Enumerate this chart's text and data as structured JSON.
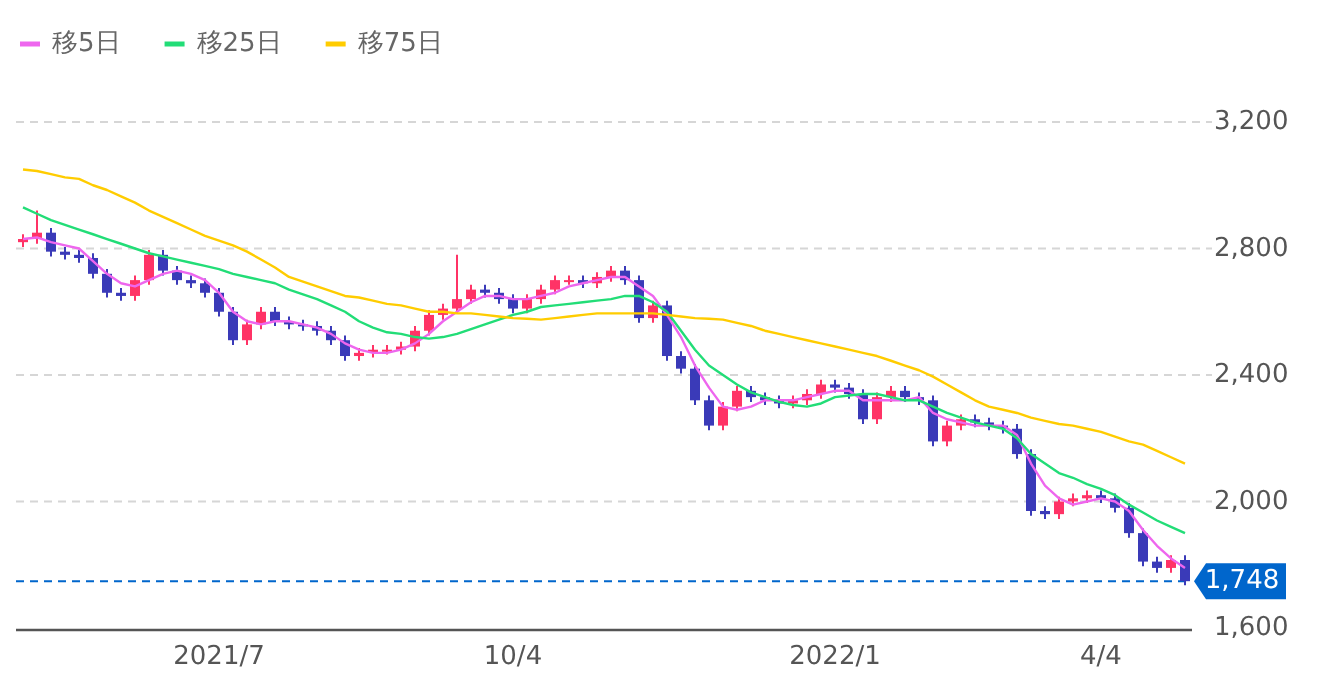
{
  "chart_data": {
    "type": "candlestick",
    "categories": [
      null,
      null,
      null,
      null,
      null,
      null,
      null,
      null,
      null,
      null,
      null,
      null,
      null,
      null,
      "2021/7",
      null,
      null,
      null,
      null,
      null,
      null,
      null,
      null,
      null,
      null,
      null,
      null,
      null,
      null,
      null,
      null,
      null,
      null,
      null,
      null,
      "10/4",
      null,
      null,
      null,
      null,
      null,
      null,
      null,
      null,
      null,
      null,
      null,
      null,
      null,
      null,
      null,
      null,
      null,
      null,
      null,
      null,
      null,
      null,
      "2022/1",
      null,
      null,
      null,
      null,
      null,
      null,
      null,
      null,
      null,
      null,
      null,
      null,
      null,
      null,
      null,
      null,
      null,
      null,
      "4/4",
      null,
      null,
      null,
      null,
      null,
      null
    ],
    "ohlc": [
      [
        2820,
        2845,
        2805,
        2830
      ],
      [
        2830,
        2920,
        2815,
        2850
      ],
      [
        2850,
        2865,
        2775,
        2790
      ],
      [
        2790,
        2805,
        2765,
        2780
      ],
      [
        2780,
        2795,
        2755,
        2770
      ],
      [
        2770,
        2785,
        2705,
        2720
      ],
      [
        2720,
        2735,
        2645,
        2660
      ],
      [
        2660,
        2675,
        2635,
        2650
      ],
      [
        2650,
        2715,
        2635,
        2700
      ],
      [
        2700,
        2795,
        2685,
        2780
      ],
      [
        2780,
        2795,
        2715,
        2730
      ],
      [
        2730,
        2745,
        2685,
        2700
      ],
      [
        2700,
        2715,
        2675,
        2690
      ],
      [
        2690,
        2705,
        2645,
        2660
      ],
      [
        2660,
        2675,
        2585,
        2600
      ],
      [
        2600,
        2615,
        2495,
        2510
      ],
      [
        2510,
        2575,
        2495,
        2560
      ],
      [
        2560,
        2615,
        2545,
        2600
      ],
      [
        2600,
        2615,
        2555,
        2570
      ],
      [
        2570,
        2585,
        2545,
        2560
      ],
      [
        2560,
        2575,
        2540,
        2555
      ],
      [
        2555,
        2570,
        2525,
        2540
      ],
      [
        2540,
        2555,
        2495,
        2510
      ],
      [
        2510,
        2525,
        2445,
        2460
      ],
      [
        2460,
        2485,
        2445,
        2470
      ],
      [
        2470,
        2495,
        2455,
        2480
      ],
      [
        2480,
        2495,
        2465,
        2480
      ],
      [
        2480,
        2505,
        2465,
        2490
      ],
      [
        2490,
        2555,
        2475,
        2540
      ],
      [
        2540,
        2605,
        2525,
        2590
      ],
      [
        2590,
        2625,
        2575,
        2610
      ],
      [
        2610,
        2780,
        2595,
        2640
      ],
      [
        2640,
        2685,
        2625,
        2670
      ],
      [
        2670,
        2685,
        2645,
        2660
      ],
      [
        2660,
        2675,
        2625,
        2640
      ],
      [
        2640,
        2655,
        2595,
        2610
      ],
      [
        2610,
        2655,
        2595,
        2640
      ],
      [
        2640,
        2685,
        2625,
        2670
      ],
      [
        2670,
        2715,
        2655,
        2700
      ],
      [
        2700,
        2715,
        2685,
        2700
      ],
      [
        2700,
        2715,
        2675,
        2690
      ],
      [
        2690,
        2725,
        2675,
        2710
      ],
      [
        2710,
        2745,
        2695,
        2730
      ],
      [
        2730,
        2745,
        2685,
        2700
      ],
      [
        2700,
        2715,
        2565,
        2580
      ],
      [
        2580,
        2635,
        2565,
        2620
      ],
      [
        2620,
        2635,
        2445,
        2460
      ],
      [
        2460,
        2475,
        2405,
        2420
      ],
      [
        2420,
        2435,
        2305,
        2320
      ],
      [
        2320,
        2335,
        2225,
        2240
      ],
      [
        2240,
        2315,
        2225,
        2300
      ],
      [
        2300,
        2365,
        2285,
        2350
      ],
      [
        2350,
        2365,
        2315,
        2330
      ],
      [
        2330,
        2345,
        2305,
        2320
      ],
      [
        2320,
        2335,
        2295,
        2310
      ],
      [
        2310,
        2335,
        2295,
        2320
      ],
      [
        2320,
        2355,
        2305,
        2340
      ],
      [
        2340,
        2385,
        2325,
        2370
      ],
      [
        2370,
        2385,
        2345,
        2360
      ],
      [
        2360,
        2375,
        2325,
        2340
      ],
      [
        2340,
        2355,
        2245,
        2260
      ],
      [
        2260,
        2345,
        2245,
        2330
      ],
      [
        2330,
        2365,
        2315,
        2350
      ],
      [
        2350,
        2365,
        2315,
        2330
      ],
      [
        2330,
        2345,
        2305,
        2320
      ],
      [
        2320,
        2335,
        2175,
        2190
      ],
      [
        2190,
        2255,
        2175,
        2240
      ],
      [
        2240,
        2275,
        2225,
        2260
      ],
      [
        2260,
        2275,
        2235,
        2250
      ],
      [
        2250,
        2265,
        2225,
        2240
      ],
      [
        2240,
        2255,
        2215,
        2230
      ],
      [
        2230,
        2245,
        2135,
        2150
      ],
      [
        2150,
        2165,
        1955,
        1970
      ],
      [
        1970,
        1985,
        1945,
        1960
      ],
      [
        1960,
        2015,
        1945,
        2000
      ],
      [
        2000,
        2025,
        1985,
        2010
      ],
      [
        2010,
        2035,
        1995,
        2020
      ],
      [
        2020,
        2035,
        1995,
        2010
      ],
      [
        2010,
        2025,
        1965,
        1980
      ],
      [
        1980,
        1995,
        1885,
        1900
      ],
      [
        1900,
        1915,
        1795,
        1810
      ],
      [
        1810,
        1825,
        1775,
        1790
      ],
      [
        1790,
        1830,
        1775,
        1815
      ],
      [
        1815,
        1830,
        1735,
        1748
      ]
    ],
    "colors": [
      "#ff3366",
      "#ff3366",
      "#3a3ab8",
      "#3a3ab8",
      "#3a3ab8",
      "#3a3ab8",
      "#3a3ab8",
      "#3a3ab8",
      "#ff3366",
      "#ff3366",
      "#3a3ab8",
      "#3a3ab8",
      "#3a3ab8",
      "#3a3ab8",
      "#3a3ab8",
      "#3a3ab8",
      "#ff3366",
      "#ff3366",
      "#3a3ab8",
      "#3a3ab8",
      "#3a3ab8",
      "#3a3ab8",
      "#3a3ab8",
      "#3a3ab8",
      "#ff3366",
      "#ff3366",
      "#ff3366",
      "#ff3366",
      "#ff3366",
      "#ff3366",
      "#ff3366",
      "#ff3366",
      "#ff3366",
      "#3a3ab8",
      "#3a3ab8",
      "#3a3ab8",
      "#ff3366",
      "#ff3366",
      "#ff3366",
      "#ff3366",
      "#3a3ab8",
      "#ff3366",
      "#ff3366",
      "#3a3ab8",
      "#3a3ab8",
      "#ff3366",
      "#3a3ab8",
      "#3a3ab8",
      "#3a3ab8",
      "#3a3ab8",
      "#ff3366",
      "#ff3366",
      "#3a3ab8",
      "#3a3ab8",
      "#3a3ab8",
      "#ff3366",
      "#ff3366",
      "#ff3366",
      "#3a3ab8",
      "#3a3ab8",
      "#3a3ab8",
      "#ff3366",
      "#ff3366",
      "#3a3ab8",
      "#3a3ab8",
      "#3a3ab8",
      "#ff3366",
      "#ff3366",
      "#3a3ab8",
      "#3a3ab8",
      "#3a3ab8",
      "#3a3ab8",
      "#3a3ab8",
      "#3a3ab8",
      "#ff3366",
      "#ff3366",
      "#ff3366",
      "#3a3ab8",
      "#3a3ab8",
      "#3a3ab8",
      "#3a3ab8",
      "#3a3ab8",
      "#ff3366",
      "#3a3ab8"
    ],
    "series": [
      {
        "name": "移5日",
        "type": "line",
        "color": "#ee66ee",
        "values": [
          2830,
          2835,
          2820,
          2810,
          2800,
          2760,
          2720,
          2690,
          2680,
          2700,
          2720,
          2730,
          2720,
          2700,
          2660,
          2600,
          2570,
          2560,
          2570,
          2570,
          2560,
          2550,
          2530,
          2500,
          2480,
          2470,
          2470,
          2480,
          2500,
          2530,
          2570,
          2600,
          2630,
          2650,
          2650,
          2640,
          2640,
          2650,
          2660,
          2680,
          2690,
          2700,
          2710,
          2710,
          2680,
          2650,
          2590,
          2520,
          2430,
          2360,
          2300,
          2290,
          2300,
          2320,
          2320,
          2320,
          2330,
          2340,
          2350,
          2350,
          2320,
          2320,
          2320,
          2320,
          2330,
          2280,
          2260,
          2250,
          2240,
          2240,
          2240,
          2210,
          2120,
          2050,
          2010,
          1990,
          2000,
          2010,
          2000,
          1970,
          1910,
          1860,
          1820,
          1790
        ]
      },
      {
        "name": "移25日",
        "type": "line",
        "color": "#22dd77",
        "values": [
          2930,
          2910,
          2890,
          2875,
          2860,
          2845,
          2830,
          2815,
          2800,
          2785,
          2775,
          2765,
          2755,
          2745,
          2735,
          2720,
          2710,
          2700,
          2690,
          2670,
          2655,
          2640,
          2620,
          2600,
          2570,
          2550,
          2535,
          2530,
          2520,
          2515,
          2520,
          2530,
          2545,
          2560,
          2575,
          2590,
          2600,
          2615,
          2620,
          2625,
          2630,
          2635,
          2640,
          2650,
          2650,
          2630,
          2600,
          2540,
          2480,
          2430,
          2400,
          2370,
          2345,
          2330,
          2315,
          2305,
          2300,
          2310,
          2330,
          2335,
          2340,
          2340,
          2330,
          2320,
          2320,
          2300,
          2280,
          2265,
          2250,
          2240,
          2230,
          2200,
          2150,
          2120,
          2090,
          2075,
          2055,
          2040,
          2020,
          1990,
          1965,
          1940,
          1920,
          1900
        ]
      },
      {
        "name": "移75日",
        "type": "line",
        "color": "#ffcc00",
        "values": [
          3050,
          3045,
          3035,
          3025,
          3020,
          3000,
          2985,
          2965,
          2945,
          2920,
          2900,
          2880,
          2860,
          2840,
          2825,
          2810,
          2790,
          2765,
          2740,
          2710,
          2695,
          2680,
          2665,
          2650,
          2645,
          2635,
          2625,
          2620,
          2610,
          2600,
          2600,
          2595,
          2595,
          2590,
          2585,
          2580,
          2578,
          2575,
          2580,
          2585,
          2590,
          2595,
          2595,
          2595,
          2595,
          2595,
          2590,
          2585,
          2580,
          2578,
          2575,
          2565,
          2555,
          2540,
          2530,
          2520,
          2510,
          2500,
          2490,
          2480,
          2470,
          2460,
          2445,
          2430,
          2415,
          2395,
          2370,
          2345,
          2320,
          2300,
          2290,
          2280,
          2265,
          2255,
          2245,
          2240,
          2230,
          2220,
          2205,
          2190,
          2180,
          2160,
          2140,
          2120
        ]
      }
    ],
    "ylim": [
      1600,
      3200
    ],
    "yticks": [
      {
        "value": 1600,
        "label": "1,600"
      },
      {
        "value": 2000,
        "label": "2,000"
      },
      {
        "value": 2400,
        "label": "2,400"
      },
      {
        "value": 2800,
        "label": "2,800"
      },
      {
        "value": 3200,
        "label": "3,200"
      }
    ],
    "grid": "y",
    "legend": "top left",
    "ref_lines": [
      {
        "axis": "y",
        "value": 1748,
        "label": "1,748",
        "color": "#0066cc",
        "line_style": "dashed"
      }
    ]
  }
}
